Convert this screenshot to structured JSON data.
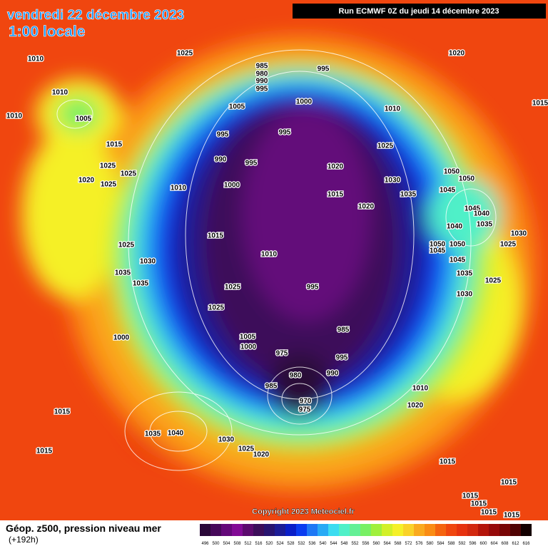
{
  "header": {
    "title": "vendredi 22 décembre 2023",
    "subtitle": "1:00 locale",
    "run": "Run ECMWF 0Z du jeudi 14 décembre 2023"
  },
  "footer": {
    "label": "Géop. z500, pression niveau mer",
    "lead": "(+192h)",
    "copyright": "Copyright 2023 Meteociel.fr"
  },
  "legend": {
    "levels": [
      "496",
      "500",
      "504",
      "508",
      "512",
      "516",
      "520",
      "524",
      "528",
      "532",
      "536",
      "540",
      "544",
      "548",
      "552",
      "556",
      "560",
      "564",
      "568",
      "572",
      "576",
      "580",
      "584",
      "588",
      "592",
      "596",
      "600",
      "604",
      "608",
      "612",
      "616"
    ],
    "colors": [
      "#2a0838",
      "#46085a",
      "#64087a",
      "#820a96",
      "#5c0a6e",
      "#3c0e5a",
      "#281470",
      "#1c1c96",
      "#0a1ec8",
      "#0a3cf0",
      "#1e78f5",
      "#28aaf5",
      "#3cdcf0",
      "#50f0c8",
      "#64f096",
      "#78f064",
      "#a0f03c",
      "#d2f028",
      "#f5f028",
      "#fad228",
      "#faaa1e",
      "#fa8c14",
      "#f5640f",
      "#f0460f",
      "#e6320f",
      "#d2280f",
      "#b4140a",
      "#960a0a",
      "#780505",
      "#500303",
      "#140000"
    ]
  },
  "isobar_labels": [
    "1010",
    "1010",
    "1005",
    "1010",
    "1025",
    "1020",
    "1015",
    "985",
    "980",
    "990",
    "995",
    "995",
    "1000",
    "1005",
    "1010",
    "995",
    "995",
    "990",
    "995",
    "1025",
    "1015",
    "1025",
    "1025",
    "1020",
    "1025",
    "1010",
    "1000",
    "1020",
    "1015",
    "1030",
    "1035",
    "1050",
    "1050",
    "1045",
    "1020",
    "1045",
    "1040",
    "1035",
    "1030",
    "1025",
    "1040",
    "1050",
    "1050",
    "1045",
    "1045",
    "1015",
    "1010",
    "1025",
    "1030",
    "1035",
    "1035",
    "1025",
    "995",
    "1035",
    "1025",
    "1030",
    "1025",
    "985",
    "1005",
    "1000",
    "975",
    "995",
    "990",
    "980",
    "985",
    "970",
    "975",
    "1000",
    "1010",
    "1020",
    "1015",
    "1035",
    "1040",
    "1030",
    "1025",
    "1020",
    "1015",
    "1015",
    "1015",
    "1015",
    "1015",
    "1015",
    "1015"
  ]
}
